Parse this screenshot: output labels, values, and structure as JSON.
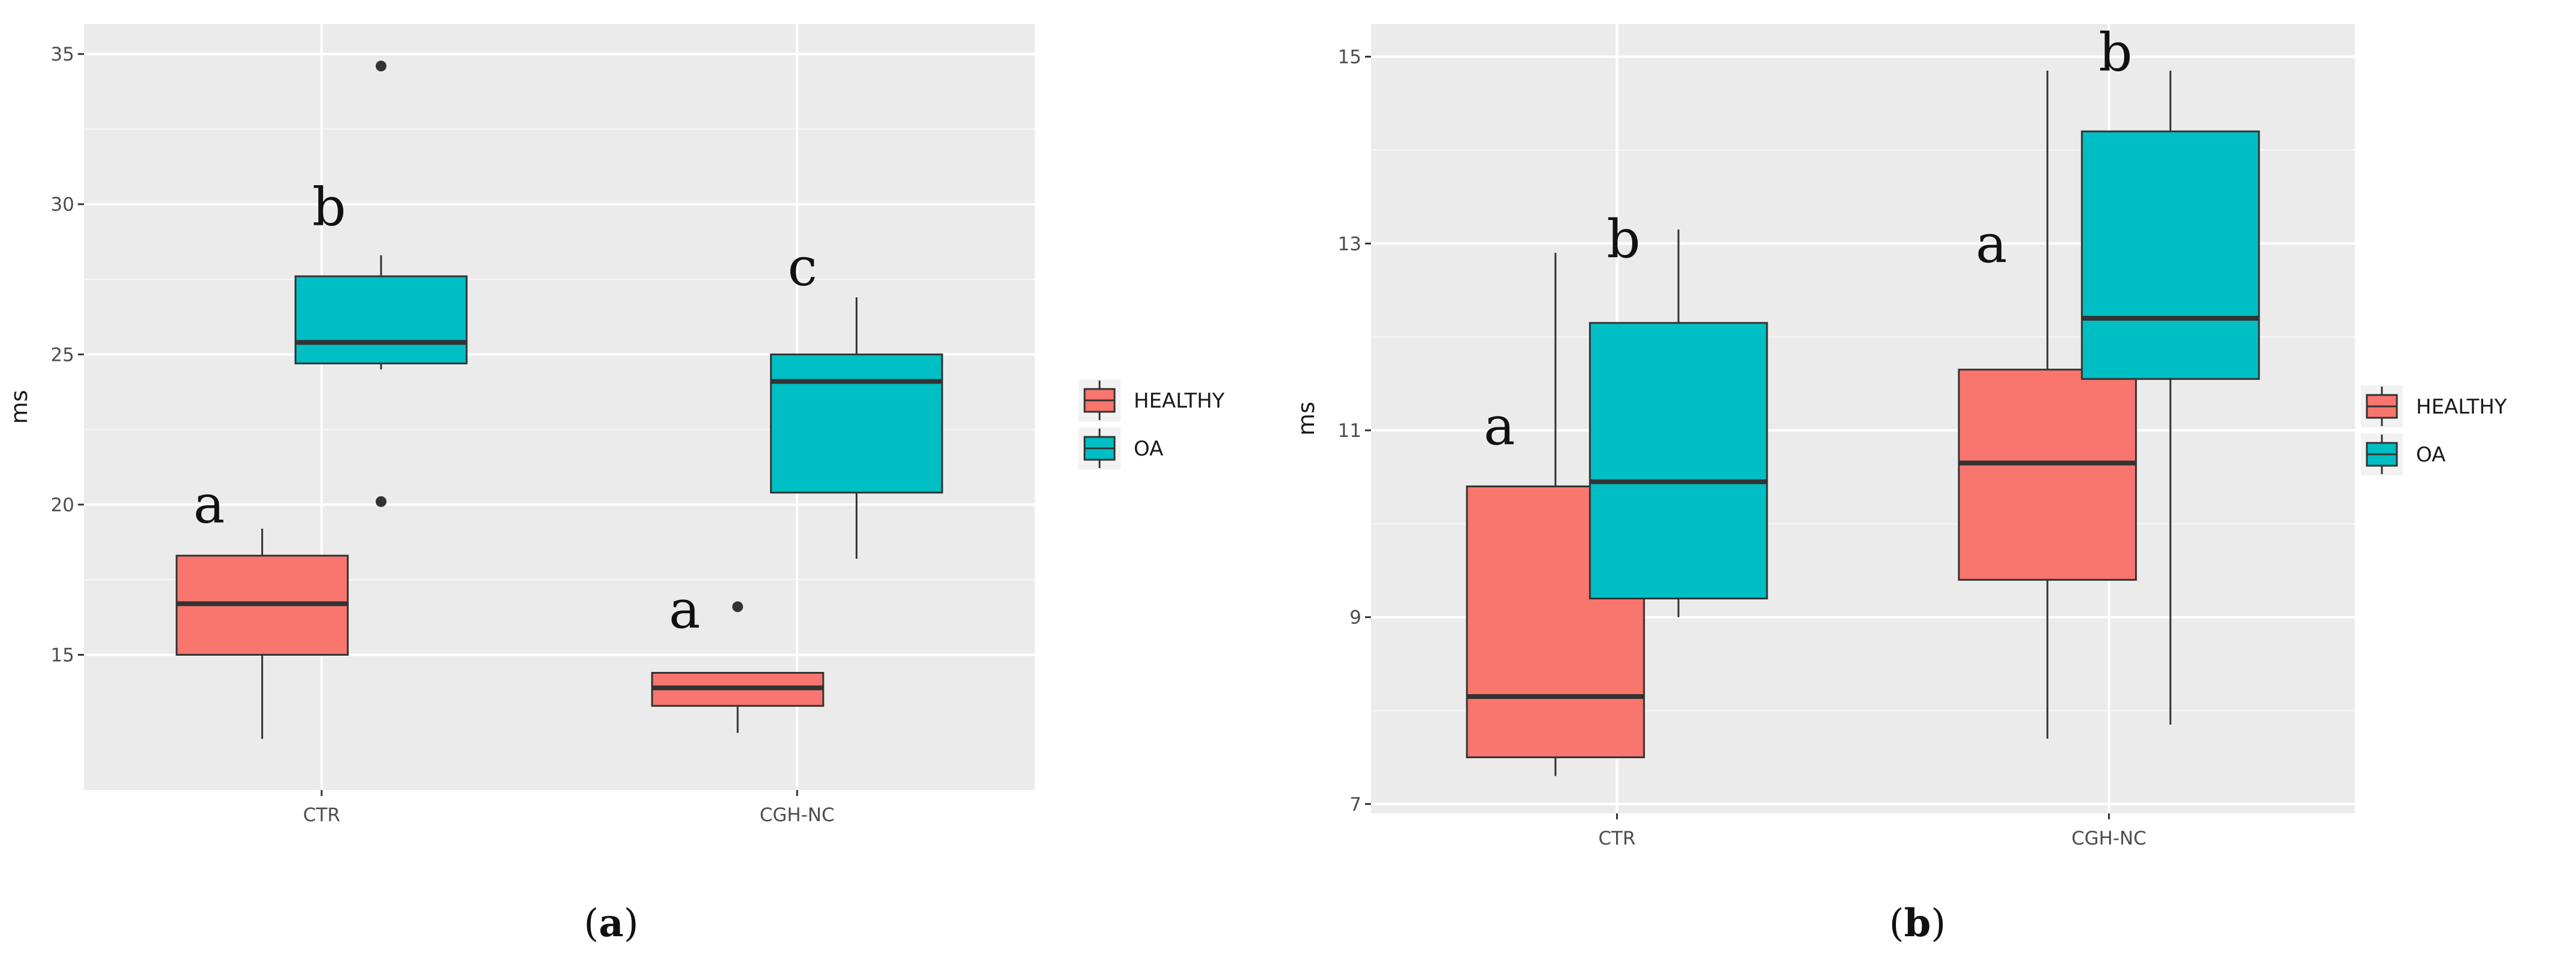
{
  "legend": {
    "items": [
      {
        "key": "healthy",
        "label": "HEALTHY",
        "color": "#F8766D"
      },
      {
        "key": "oa",
        "label": "OA",
        "color": "#00BFC4"
      }
    ]
  },
  "chart_data": [
    {
      "id": "a",
      "type": "boxplot",
      "caption": {
        "open": "(",
        "letter": "a",
        "close": ")"
      },
      "xlabel": "",
      "ylabel": "ms",
      "categories": [
        "CTR",
        "CGH-NC"
      ],
      "ylim": [
        10.5,
        36
      ],
      "yticks": [
        15,
        20,
        25,
        30,
        35
      ],
      "yticks_labels": [
        "15",
        "20",
        "25",
        "30",
        "35"
      ],
      "series": [
        {
          "name": "HEALTHY",
          "key": "healthy",
          "boxes": [
            {
              "category": "CTR",
              "min": 12.2,
              "q1": 15.0,
              "median": 16.7,
              "q3": 18.3,
              "max": 19.2,
              "outliers": [],
              "letter": "a",
              "letter_y": 19.4
            },
            {
              "category": "CGH-NC",
              "min": 12.4,
              "q1": 13.3,
              "median": 13.9,
              "q3": 14.4,
              "max": 14.4,
              "outliers": [
                16.6
              ],
              "letter": "a",
              "letter_y": 15.9
            }
          ]
        },
        {
          "name": "OA",
          "key": "oa",
          "boxes": [
            {
              "category": "CTR",
              "min": 24.5,
              "q1": 24.7,
              "median": 25.4,
              "q3": 27.6,
              "max": 28.3,
              "outliers": [
                34.6,
                20.1
              ],
              "letter": "b",
              "letter_y": 29.3
            },
            {
              "category": "CGH-NC",
              "min": 18.2,
              "q1": 20.4,
              "median": 24.1,
              "q3": 25.0,
              "max": 26.9,
              "outliers": [],
              "letter": "c",
              "letter_y": 27.3
            }
          ]
        }
      ]
    },
    {
      "id": "b",
      "type": "boxplot",
      "caption": {
        "open": "(",
        "letter": "b",
        "close": ")"
      },
      "xlabel": "",
      "ylabel": "ms",
      "categories": [
        "CTR",
        "CGH-NC"
      ],
      "ylim": [
        6.9,
        15.35
      ],
      "yticks": [
        7,
        9,
        11,
        13,
        15
      ],
      "yticks_labels": [
        "7",
        "9",
        "11",
        "13",
        "15"
      ],
      "series": [
        {
          "name": "HEALTHY",
          "key": "healthy",
          "boxes": [
            {
              "category": "CTR",
              "min": 7.3,
              "q1": 7.5,
              "median": 8.15,
              "q3": 10.4,
              "max": 12.9,
              "outliers": [],
              "letter": "a",
              "letter_y": 10.85
            },
            {
              "category": "CGH-NC",
              "min": 7.7,
              "q1": 9.4,
              "median": 10.65,
              "q3": 11.65,
              "max": 14.85,
              "outliers": [],
              "letter": "a",
              "letter_y": 12.8
            }
          ]
        },
        {
          "name": "OA",
          "key": "oa",
          "boxes": [
            {
              "category": "CTR",
              "min": 9.0,
              "q1": 9.2,
              "median": 10.45,
              "q3": 12.15,
              "max": 13.15,
              "outliers": [],
              "letter": "b",
              "letter_y": 12.85
            },
            {
              "category": "CGH-NC",
              "min": 7.85,
              "q1": 11.55,
              "median": 12.2,
              "q3": 14.2,
              "max": 14.85,
              "outliers": [],
              "letter": "b",
              "letter_y": 14.85
            }
          ]
        }
      ]
    }
  ]
}
